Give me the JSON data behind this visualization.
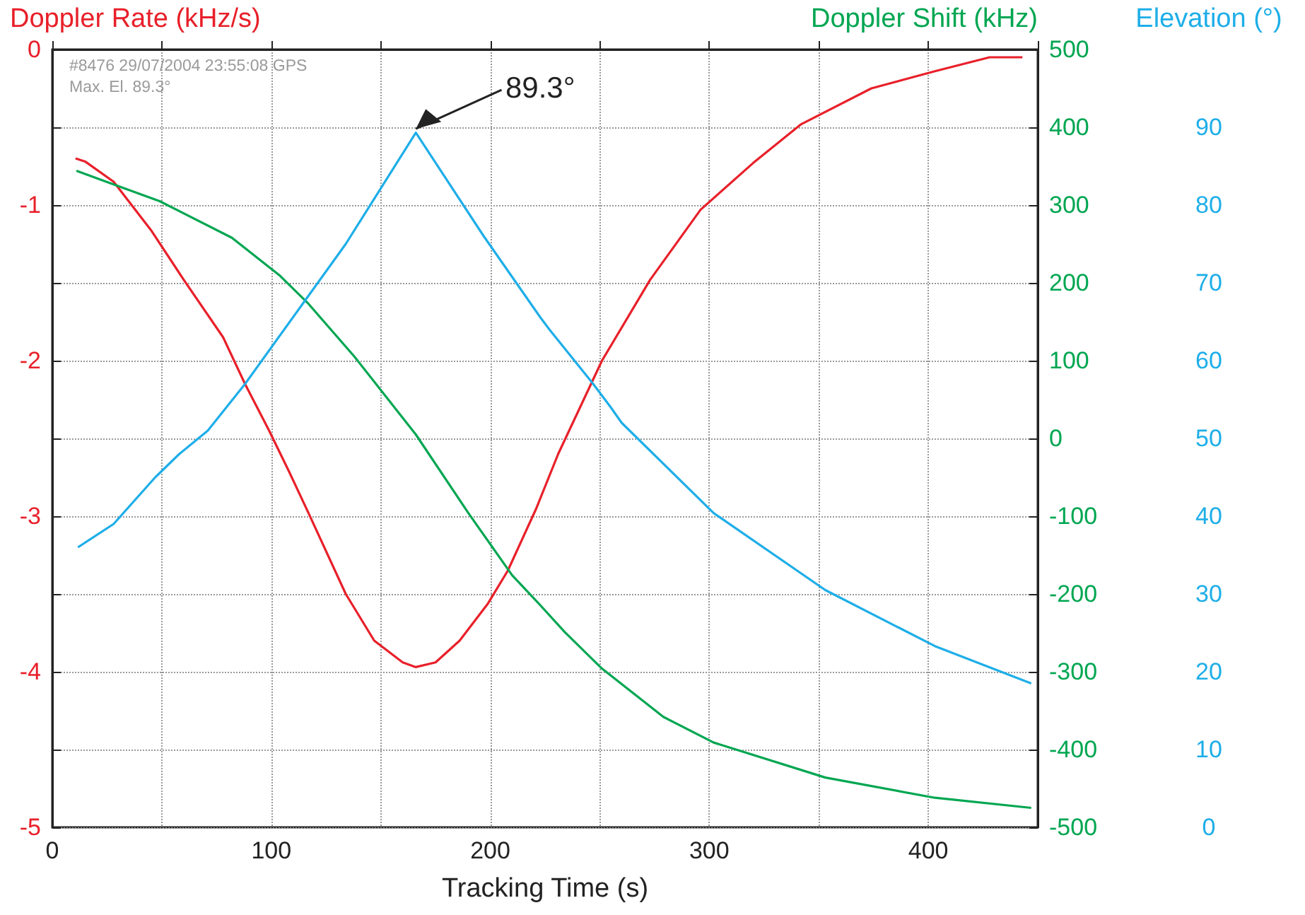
{
  "chart_data": {
    "type": "line",
    "xlabel": "Tracking Time (s)",
    "ylabel": "Doppler Rate (kHz/s)",
    "y2label": "Doppler Shift (kHz)",
    "y3label": "Elevation (°)",
    "xlim": [
      0,
      450
    ],
    "xticks": [
      0,
      {
        "value": 50,
        "label": null
      },
      100,
      {
        "value": 150,
        "label": null
      },
      200,
      {
        "value": 250,
        "label": null
      },
      300,
      {
        "value": 350,
        "label": null
      },
      400,
      {
        "value": 450,
        "label": null
      }
    ],
    "ylim": [
      -5,
      0
    ],
    "yticks": [
      -5,
      {
        "value": -4.5,
        "label": null
      },
      -4,
      {
        "value": -3.5,
        "label": null
      },
      -3,
      {
        "value": -2.5,
        "label": null
      },
      -2,
      {
        "value": -1.5,
        "label": null
      },
      -1,
      {
        "value": -0.5,
        "label": null
      },
      0
    ],
    "y2lim": [
      -500,
      500
    ],
    "y2ticks": [
      -500,
      -400,
      -300,
      -200,
      -100,
      0,
      100,
      200,
      300,
      400,
      500
    ],
    "y3lim": [
      0,
      100
    ],
    "y3ticks": [
      0,
      10,
      20,
      30,
      40,
      50,
      60,
      70,
      80,
      90
    ],
    "grid": true,
    "marker": "none",
    "line_style": "solid",
    "series": [
      {
        "color": "#e8202a",
        "axis": "y",
        "x": [
          10.6,
          15,
          28,
          45,
          60,
          78,
          88,
          99,
          108,
          117,
          134,
          147,
          160,
          166,
          175,
          186,
          199,
          208,
          221,
          231,
          251,
          273,
          296,
          320,
          342,
          374,
          403,
          428,
          443
        ],
        "values": [
          -0.7,
          -0.72,
          -0.85,
          -1.16,
          -1.48,
          -1.85,
          -2.15,
          -2.45,
          -2.71,
          -2.98,
          -3.5,
          -3.8,
          -3.94,
          -3.97,
          -3.94,
          -3.8,
          -3.56,
          -3.35,
          -2.95,
          -2.6,
          -2.0,
          -1.48,
          -1.03,
          -0.73,
          -0.48,
          -0.25,
          -0.14,
          -0.05,
          -0.05
        ]
      },
      {
        "color": "#00a651",
        "axis": "y2",
        "x": [
          11,
          49,
          82,
          104,
          117,
          138,
          166,
          190,
          210,
          223,
          234,
          251,
          279,
          302,
          353,
          403,
          447
        ],
        "values": [
          344,
          305,
          258,
          209,
          173,
          105,
          5,
          -96,
          -176,
          -215,
          -249,
          -296,
          -358,
          -391,
          -436,
          -462,
          -475
        ]
      },
      {
        "color": "#1eaee8",
        "axis": "y3",
        "x": [
          11.7,
          28,
          47,
          58,
          71,
          88,
          134,
          166,
          197,
          223,
          227,
          247,
          255,
          260,
          302,
          353,
          403,
          447
        ],
        "values": [
          36,
          39,
          45,
          48,
          51,
          57,
          75,
          89.3,
          76,
          65.5,
          64,
          57,
          54,
          52,
          40.4,
          30.5,
          23.3,
          18.5
        ]
      }
    ],
    "annotations": [
      "#8476 29/07/2004 23:55:08 GPS",
      "Max. El. 89.3°",
      {
        "text": "89.3°",
        "x": 166,
        "y": -0.51
      }
    ]
  }
}
